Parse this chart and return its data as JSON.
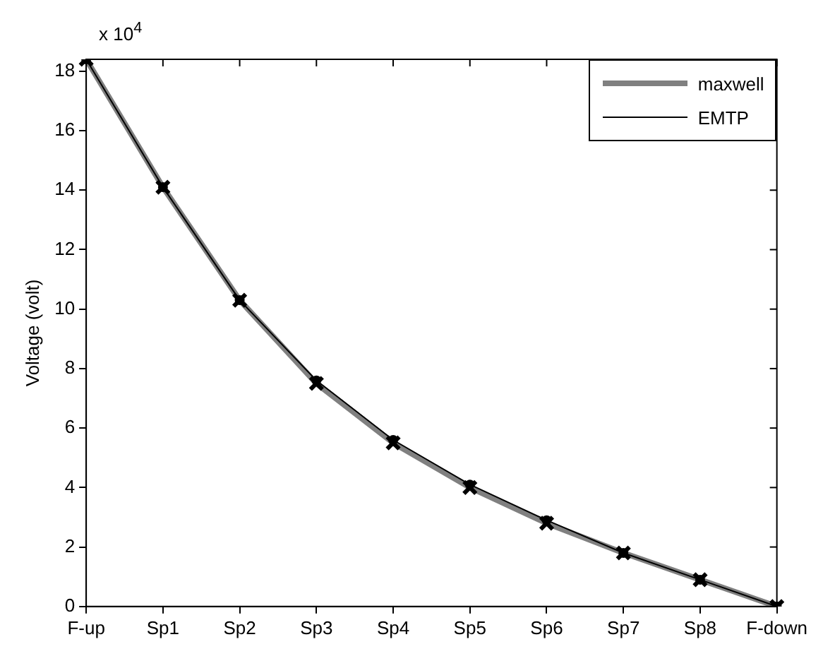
{
  "chart_data": {
    "type": "line",
    "ylabel": "Voltage (volt)",
    "annotations": [
      "x 10$^{4}$"
    ],
    "categories": [
      "F-up",
      "Sp1",
      "Sp2",
      "Sp3",
      "Sp4",
      "Sp5",
      "Sp6",
      "Sp7",
      "Sp8",
      "F-down"
    ],
    "series": [
      {
        "name": "maxwell",
        "color": "#808080",
        "marker": "cross",
        "values": [
          18.4,
          14.1,
          10.3,
          7.5,
          5.5,
          4.0,
          2.8,
          1.8,
          0.9,
          0
        ]
      },
      {
        "name": "EMTP",
        "color": "#000000",
        "marker": "circle",
        "values": [
          18.4,
          14.1,
          10.3,
          7.6,
          5.6,
          4.1,
          2.9,
          1.8,
          0.9,
          0
        ]
      }
    ],
    "ylim": [
      0,
      18.4
    ],
    "yticks": [
      0,
      2,
      4,
      6,
      8,
      10,
      12,
      14,
      16,
      18
    ],
    "grid": false,
    "legend": "top right",
    "line_style": "solid"
  }
}
